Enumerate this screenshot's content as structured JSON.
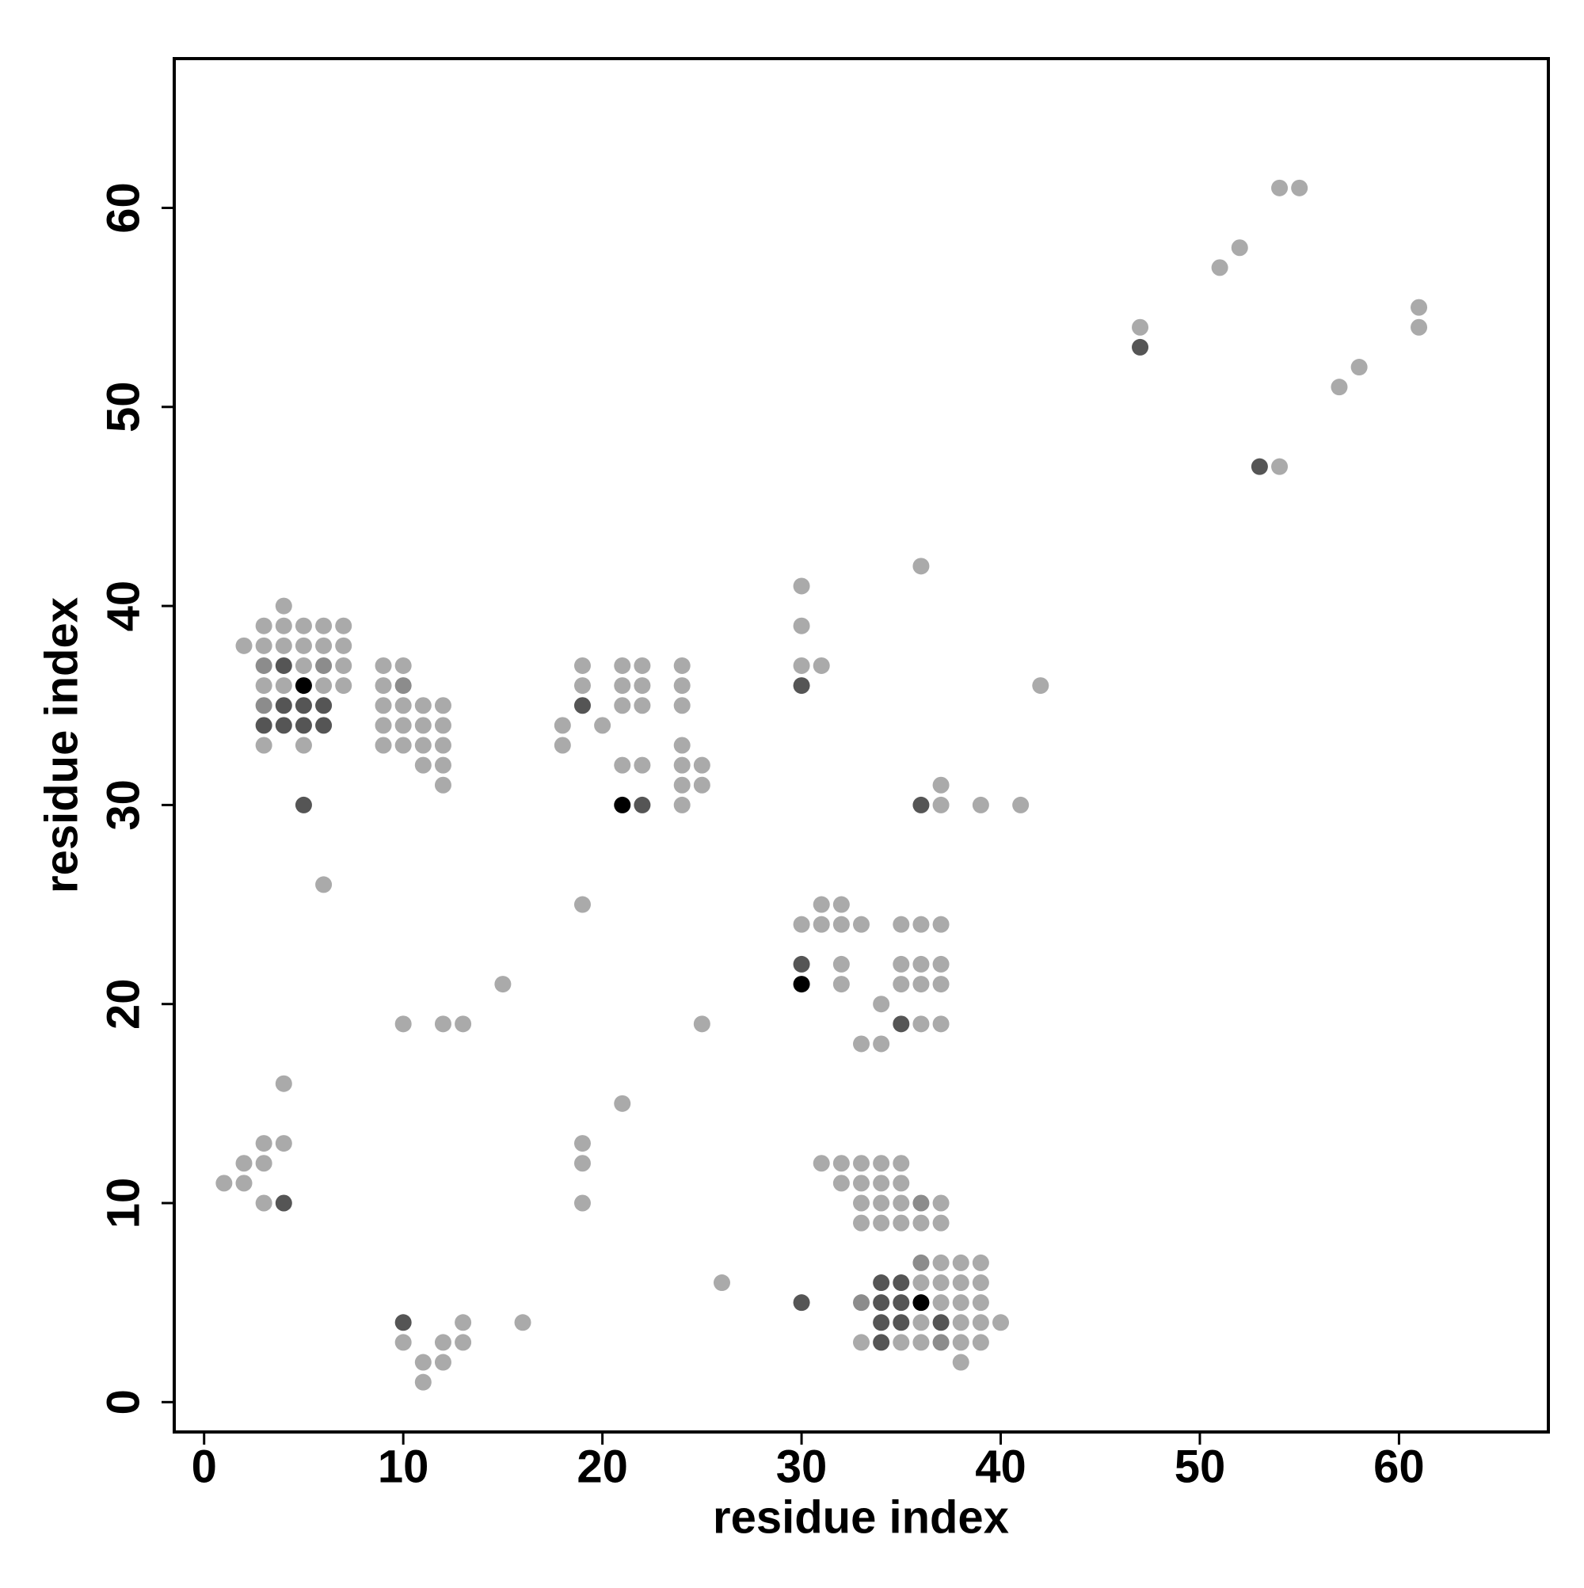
{
  "chart_data": {
    "type": "scatter",
    "x_label": "residue index",
    "y_label": "residue index",
    "xlim": [
      -1.5,
      67.5
    ],
    "ylim": [
      -1.5,
      67.5
    ],
    "xticks": [
      0,
      10,
      20,
      30,
      40,
      50,
      60
    ],
    "yticks": [
      0,
      10,
      20,
      30,
      40,
      50,
      60
    ],
    "grid": false,
    "series": [
      {
        "color": "#aaaaaa",
        "x": [
          54,
          55,
          51,
          52,
          61,
          61,
          47,
          57,
          58,
          54,
          36,
          30,
          30,
          30,
          31,
          42,
          4,
          3,
          4,
          5,
          6,
          7,
          2,
          3,
          4,
          5,
          6,
          7,
          5,
          7,
          3,
          4,
          6,
          7,
          3,
          5,
          6,
          9,
          10,
          9,
          9,
          10,
          11,
          12,
          9,
          10,
          11,
          12,
          9,
          10,
          11,
          12,
          11,
          12,
          12,
          19,
          19,
          18,
          20,
          18,
          21,
          22,
          21,
          22,
          21,
          22,
          24,
          24,
          24,
          24,
          24,
          25,
          24,
          25,
          24,
          21,
          22,
          19,
          37,
          37,
          39,
          41,
          31,
          32,
          30,
          31,
          32,
          33,
          35,
          36,
          37,
          32,
          35,
          36,
          37,
          32,
          35,
          36,
          37,
          34,
          36,
          37,
          33,
          34,
          15,
          10,
          12,
          13,
          25,
          4,
          3,
          4,
          2,
          3,
          1,
          2,
          3,
          19,
          19,
          19,
          21,
          26,
          16,
          13,
          10,
          12,
          13,
          11,
          12,
          11,
          31,
          32,
          33,
          34,
          35,
          32,
          33,
          34,
          35,
          33,
          34,
          35,
          37,
          33,
          34,
          35,
          36,
          37,
          37,
          38,
          39,
          36,
          37,
          38,
          39,
          37,
          38,
          39,
          36,
          38,
          39,
          40,
          33,
          35,
          36,
          38,
          39,
          38
        ],
        "values": [
          61,
          61,
          57,
          58,
          55,
          54,
          54,
          51,
          52,
          47,
          42,
          41,
          39,
          37,
          37,
          36,
          40,
          39,
          39,
          39,
          39,
          39,
          38,
          38,
          38,
          38,
          38,
          38,
          37,
          37,
          36,
          36,
          36,
          36,
          33,
          33,
          26,
          37,
          37,
          36,
          35,
          35,
          35,
          35,
          34,
          34,
          34,
          34,
          33,
          33,
          33,
          33,
          32,
          32,
          31,
          37,
          36,
          34,
          34,
          33,
          37,
          37,
          36,
          36,
          35,
          35,
          37,
          36,
          35,
          33,
          32,
          32,
          31,
          31,
          30,
          32,
          32,
          25,
          31,
          30,
          30,
          30,
          25,
          25,
          24,
          24,
          24,
          24,
          24,
          24,
          24,
          22,
          22,
          22,
          22,
          21,
          21,
          21,
          21,
          20,
          19,
          19,
          18,
          18,
          21,
          19,
          19,
          19,
          19,
          16,
          13,
          13,
          12,
          12,
          11,
          11,
          10,
          13,
          12,
          10,
          15,
          6,
          4,
          4,
          3,
          3,
          3,
          2,
          2,
          1,
          12,
          12,
          12,
          12,
          12,
          11,
          11,
          11,
          11,
          10,
          10,
          10,
          10,
          9,
          9,
          9,
          9,
          9,
          7,
          7,
          7,
          6,
          6,
          6,
          6,
          5,
          5,
          5,
          4,
          4,
          4,
          4,
          3,
          3,
          3,
          3,
          3,
          2
        ]
      },
      {
        "color": "#8c8c8c",
        "x": [
          3,
          6,
          3,
          10,
          36,
          36,
          33,
          37
        ],
        "values": [
          37,
          37,
          35,
          36,
          10,
          7,
          5,
          3
        ]
      },
      {
        "color": "#555555",
        "x": [
          47,
          53,
          30,
          4,
          4,
          5,
          6,
          3,
          4,
          5,
          6,
          5,
          19,
          22,
          36,
          30,
          35,
          4,
          10,
          34,
          35,
          30,
          34,
          35,
          34,
          35,
          37,
          34
        ],
        "values": [
          53,
          47,
          36,
          37,
          35,
          35,
          35,
          34,
          34,
          34,
          34,
          30,
          35,
          30,
          30,
          22,
          19,
          10,
          4,
          6,
          6,
          5,
          5,
          5,
          4,
          4,
          4,
          3
        ]
      },
      {
        "color": "#000000",
        "x": [
          5,
          21,
          30,
          36
        ],
        "values": [
          36,
          30,
          21,
          5
        ]
      }
    ]
  }
}
